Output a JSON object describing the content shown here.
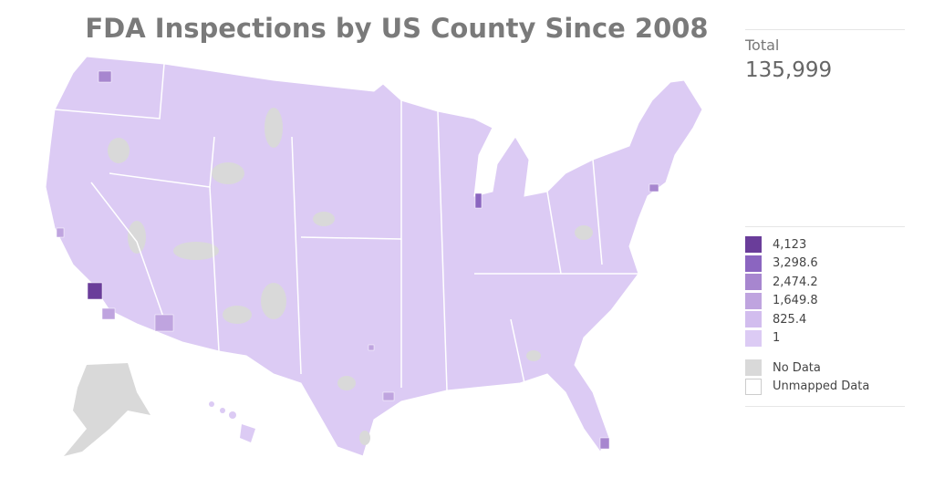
{
  "title": "FDA Inspections by US County Since 2008",
  "summary": {
    "label": "Total",
    "value": "135,999"
  },
  "legend": {
    "bins": [
      {
        "label": "4,123",
        "color": "#6a3d9a"
      },
      {
        "label": "3,298.6",
        "color": "#8b65c0"
      },
      {
        "label": "2,474.2",
        "color": "#a786cf"
      },
      {
        "label": "1,649.8",
        "color": "#bfa4df"
      },
      {
        "label": "825.4",
        "color": "#d2bdee"
      },
      {
        "label": "1",
        "color": "#dccbf4"
      }
    ],
    "no_data": {
      "label": "No Data",
      "color": "#d9d9d9"
    },
    "unmapped": {
      "label": "Unmapped Data",
      "color": "#ffffff"
    }
  }
}
